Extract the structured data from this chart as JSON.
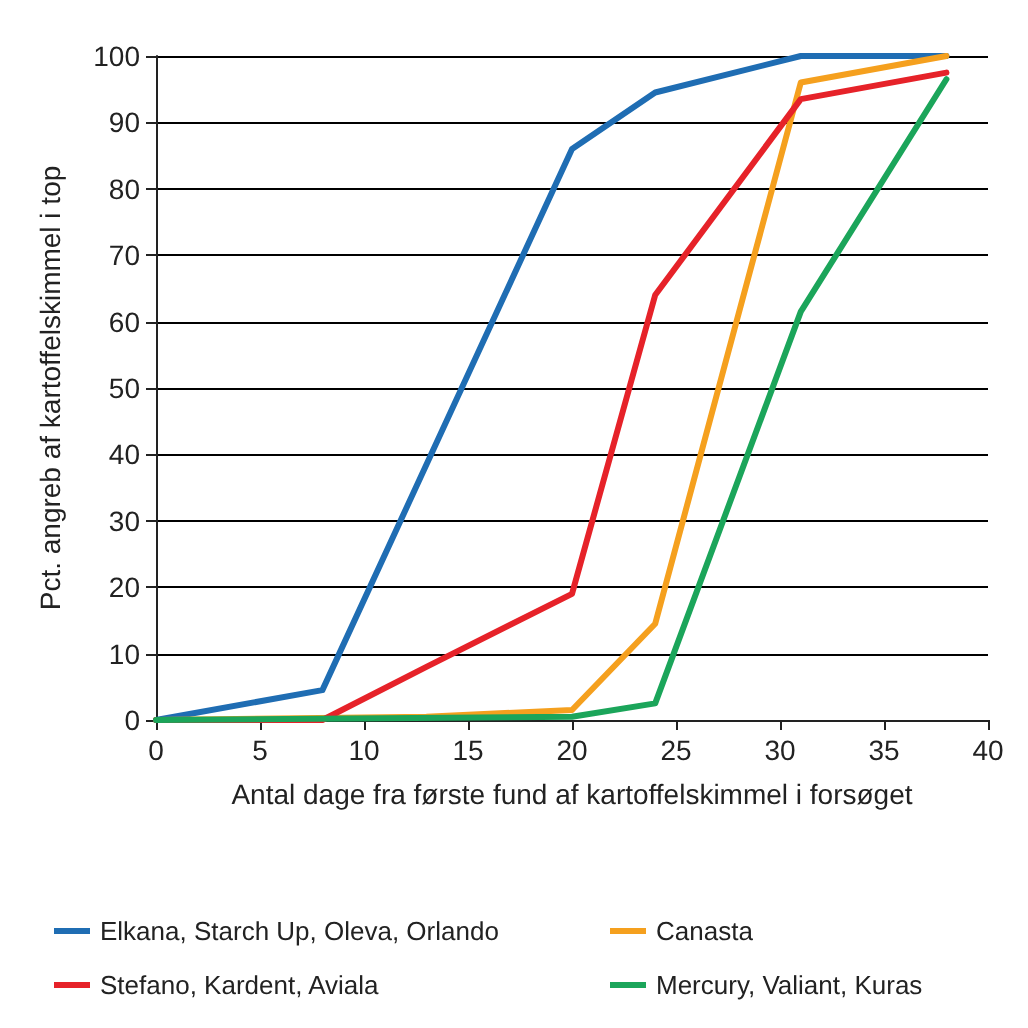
{
  "chart_data": {
    "type": "line",
    "xlabel": "Antal dage fra første fund af kartoffelskimmel i forsøget",
    "ylabel": "Pct. angreb af kartoffelskimmel i top",
    "xlim": [
      0,
      40
    ],
    "xticks": [
      0,
      5,
      10,
      15,
      20,
      25,
      30,
      35,
      40
    ],
    "ylim": [
      0,
      100
    ],
    "yticks": [
      0,
      10,
      20,
      30,
      40,
      50,
      60,
      70,
      80,
      90,
      100
    ],
    "grid": "y",
    "legend": "bottom",
    "marker": "none",
    "line_style": "solid",
    "series": [
      {
        "name": "Elkana, Starch Up, Oleva, Orlando",
        "color": "#1f6db3",
        "x": [
          0,
          8,
          20,
          24,
          31,
          38
        ],
        "values": [
          0,
          4.5,
          86,
          94.5,
          100,
          100
        ]
      },
      {
        "name": "Canasta",
        "color": "#f5a01e",
        "x": [
          0,
          13,
          20,
          24,
          31,
          38
        ],
        "values": [
          0,
          0.5,
          1.5,
          14.5,
          96,
          100
        ]
      },
      {
        "name": "Stefano, Kardent, Aviala",
        "color": "#e62229",
        "x": [
          0,
          8,
          13,
          20,
          24,
          31,
          38
        ],
        "values": [
          0,
          0,
          8,
          19,
          64,
          93.5,
          97.5
        ]
      },
      {
        "name": "Mercury, Valiant, Kuras",
        "color": "#1ba55a",
        "x": [
          0,
          20,
          24,
          31,
          38
        ],
        "values": [
          0,
          0.5,
          2.5,
          61.5,
          96.5
        ]
      }
    ]
  }
}
